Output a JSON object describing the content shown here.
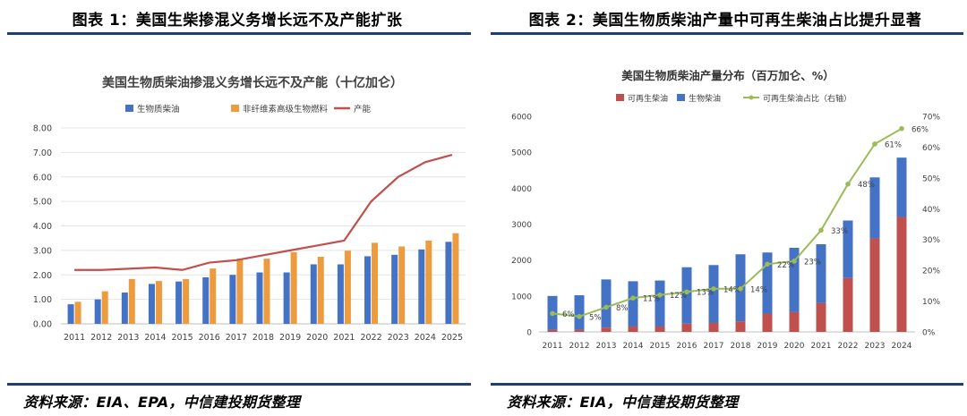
{
  "left": {
    "heading": "图表 1：美国生柴掺混义务增长远不及产能扩张",
    "source": "资料来源：EIA、EPA，中信建投期货整理"
  },
  "right": {
    "heading": "图表 2：美国生物质柴油产量中可再生柴油占比提升显著",
    "source": "资料来源：EIA，中信建投期货整理"
  },
  "chart_data": [
    {
      "type": "bar",
      "title": "美国生物质柴油掺混义务增长远不及产能（十亿加仑）",
      "categories": [
        "2011",
        "2012",
        "2013",
        "2014",
        "2015",
        "2016",
        "2017",
        "2018",
        "2019",
        "2020",
        "2021",
        "2022",
        "2023",
        "2024",
        "2025"
      ],
      "series": [
        {
          "name": "生物质柴油",
          "kind": "bar",
          "color": "#4472c4",
          "values": [
            0.8,
            1.0,
            1.28,
            1.63,
            1.73,
            1.9,
            2.0,
            2.1,
            2.1,
            2.43,
            2.43,
            2.76,
            2.82,
            3.04,
            3.35
          ]
        },
        {
          "name": "非纤维素高级生物燃料",
          "kind": "bar",
          "color": "#ed9b3f",
          "values": [
            0.9,
            1.33,
            1.83,
            1.75,
            1.83,
            2.26,
            2.66,
            2.66,
            2.93,
            2.74,
            2.99,
            3.31,
            3.16,
            3.4,
            3.7
          ]
        },
        {
          "name": "产能",
          "kind": "line",
          "color": "#c0504d",
          "values": [
            2.2,
            2.2,
            2.25,
            2.3,
            2.2,
            2.5,
            2.6,
            2.8,
            3.0,
            3.2,
            3.4,
            5.0,
            6.0,
            6.6,
            6.9
          ]
        }
      ],
      "ylim": [
        0,
        8
      ],
      "yticks": [
        "0.00",
        "1.00",
        "2.00",
        "3.00",
        "4.00",
        "5.00",
        "6.00",
        "7.00",
        "8.00"
      ],
      "grid": true,
      "legend": "top"
    },
    {
      "type": "bar",
      "title": "美国生物质柴油产量分布（百万加仑、%）",
      "categories": [
        "2011",
        "2012",
        "2013",
        "2014",
        "2015",
        "2016",
        "2017",
        "2018",
        "2019",
        "2020",
        "2021",
        "2022",
        "2023",
        "2024"
      ],
      "series": [
        {
          "name": "可再生柴油",
          "kind": "stacked-bar",
          "color": "#c0504d",
          "values": [
            60,
            60,
            120,
            150,
            150,
            230,
            250,
            290,
            510,
            550,
            800,
            1500,
            2600,
            3200
          ]
        },
        {
          "name": "生物柴油",
          "kind": "stacked-bar",
          "color": "#4472c4",
          "values": [
            940,
            960,
            1340,
            1260,
            1280,
            1570,
            1610,
            1870,
            1700,
            1790,
            1640,
            1600,
            1700,
            1650
          ]
        },
        {
          "name": "可再生柴油占比（右轴）",
          "kind": "line",
          "axis": "right",
          "color": "#9bbb59",
          "values": [
            6,
            5,
            8,
            11,
            12,
            13,
            14,
            14,
            22,
            23,
            33,
            48,
            61,
            66
          ],
          "labels": [
            "6%",
            "5%",
            "8%",
            "11%",
            "12%",
            "13%",
            "14%",
            "14%",
            "22%",
            "23%",
            "33%",
            "48%",
            "61%",
            "66%"
          ]
        }
      ],
      "ylim": [
        0,
        6000
      ],
      "yticks": [
        "0",
        "1000",
        "2000",
        "3000",
        "4000",
        "5000",
        "6000"
      ],
      "y2lim": [
        0,
        70
      ],
      "y2ticks": [
        "0%",
        "10%",
        "20%",
        "30%",
        "40%",
        "50%",
        "60%",
        "70%"
      ],
      "grid": false,
      "legend": "top"
    }
  ]
}
